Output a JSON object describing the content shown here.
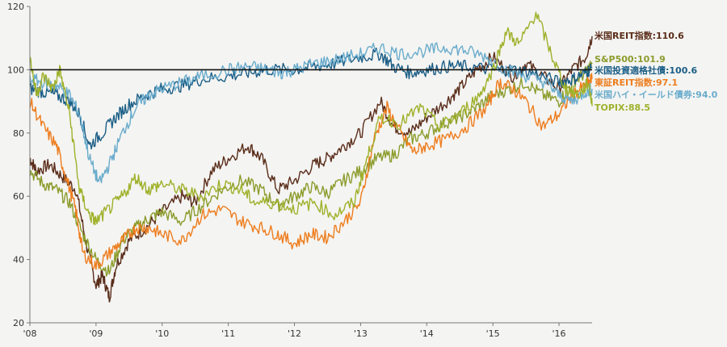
{
  "chart_data": {
    "type": "line",
    "title": "",
    "xlabel": "",
    "ylabel": "",
    "ylim": [
      20,
      120
    ],
    "xlim": [
      2008.0,
      2016.5
    ],
    "y_ticks": [
      "20",
      "40",
      "60",
      "80",
      "100",
      "120"
    ],
    "x_ticks": [
      {
        "year": 2008,
        "label": "'08"
      },
      {
        "year": 2009,
        "label": "'09"
      },
      {
        "year": 2010,
        "label": "'10"
      },
      {
        "year": 2011,
        "label": "'11"
      },
      {
        "year": 2012,
        "label": "'12"
      },
      {
        "year": 2013,
        "label": "'13"
      },
      {
        "year": 2014,
        "label": "'14"
      },
      {
        "year": 2015,
        "label": "'15"
      },
      {
        "year": 2016,
        "label": "'16"
      }
    ],
    "reference_line": 100,
    "grid": false,
    "legend": "right",
    "series": [
      {
        "name": "米国REIT指数:110.6",
        "color": "#5a2d1a",
        "x": [
          2008.0,
          2008.1,
          2008.3,
          2008.5,
          2008.7,
          2008.85,
          2009.0,
          2009.1,
          2009.2,
          2009.3,
          2009.5,
          2009.75,
          2010.0,
          2010.3,
          2010.5,
          2010.75,
          2011.0,
          2011.3,
          2011.5,
          2011.75,
          2012.0,
          2012.3,
          2012.5,
          2012.75,
          2013.0,
          2013.3,
          2013.5,
          2013.75,
          2014.0,
          2014.3,
          2014.5,
          2014.75,
          2015.0,
          2015.3,
          2015.5,
          2015.75,
          2016.0,
          2016.2,
          2016.4,
          2016.5
        ],
        "y": [
          72,
          68,
          70,
          66,
          62,
          45,
          32,
          35,
          28,
          38,
          46,
          50,
          55,
          60,
          58,
          68,
          72,
          76,
          72,
          62,
          65,
          70,
          72,
          76,
          80,
          90,
          82,
          80,
          85,
          90,
          94,
          100,
          104,
          98,
          102,
          98,
          94,
          100,
          104,
          110.6
        ]
      },
      {
        "name": "S&P500:101.9",
        "color": "#8c9c2c",
        "x": [
          2008.0,
          2008.2,
          2008.4,
          2008.6,
          2008.8,
          2009.0,
          2009.2,
          2009.4,
          2009.6,
          2009.8,
          2010.0,
          2010.3,
          2010.6,
          2010.9,
          2011.2,
          2011.5,
          2011.75,
          2012.0,
          2012.25,
          2012.5,
          2012.75,
          2013.0,
          2013.25,
          2013.5,
          2013.75,
          2014.0,
          2014.25,
          2014.5,
          2014.75,
          2015.0,
          2015.25,
          2015.5,
          2015.75,
          2016.0,
          2016.2,
          2016.4,
          2016.5
        ],
        "y": [
          68,
          64,
          62,
          58,
          48,
          40,
          36,
          46,
          50,
          53,
          55,
          52,
          57,
          62,
          65,
          62,
          57,
          60,
          63,
          61,
          65,
          68,
          72,
          73,
          78,
          80,
          83,
          85,
          88,
          92,
          94,
          96,
          92,
          90,
          96,
          99,
          101.9
        ]
      },
      {
        "name": "米国投資適格社債:100.6",
        "color": "#1b5e86",
        "x": [
          2008.0,
          2008.2,
          2008.4,
          2008.6,
          2008.75,
          2008.9,
          2009.1,
          2009.3,
          2009.5,
          2009.75,
          2010.0,
          2010.3,
          2010.6,
          2011.0,
          2011.3,
          2011.6,
          2012.0,
          2012.3,
          2012.6,
          2013.0,
          2013.3,
          2013.5,
          2013.75,
          2014.0,
          2014.3,
          2014.6,
          2015.0,
          2015.3,
          2015.6,
          2016.0,
          2016.2,
          2016.4,
          2016.5
        ],
        "y": [
          94,
          93,
          92,
          90,
          86,
          76,
          80,
          85,
          89,
          92,
          94,
          95,
          97,
          98,
          99,
          100,
          100,
          101,
          102,
          104,
          105,
          101,
          99,
          100,
          101,
          101,
          100,
          100,
          99,
          96,
          97,
          99,
          100.6
        ]
      },
      {
        "name": "東証REIT指数:97.1",
        "color": "#ee7d1e",
        "x": [
          2008.0,
          2008.2,
          2008.4,
          2008.55,
          2008.7,
          2008.8,
          2009.0,
          2009.2,
          2009.4,
          2009.6,
          2009.8,
          2010.0,
          2010.3,
          2010.6,
          2010.9,
          2011.2,
          2011.5,
          2011.75,
          2012.0,
          2012.25,
          2012.5,
          2012.75,
          2013.0,
          2013.2,
          2013.4,
          2013.6,
          2013.8,
          2014.0,
          2014.3,
          2014.6,
          2014.9,
          2015.1,
          2015.3,
          2015.5,
          2015.75,
          2016.0,
          2016.2,
          2016.4,
          2016.5
        ],
        "y": [
          90,
          82,
          76,
          66,
          55,
          42,
          38,
          42,
          46,
          50,
          50,
          48,
          46,
          54,
          56,
          52,
          50,
          48,
          45,
          48,
          47,
          52,
          58,
          78,
          88,
          80,
          74,
          76,
          78,
          82,
          88,
          96,
          94,
          90,
          82,
          86,
          92,
          95,
          97.1
        ]
      },
      {
        "name": "米国ハイ・イールド債券:94.0",
        "color": "#6aaccc",
        "x": [
          2008.0,
          2008.2,
          2008.4,
          2008.6,
          2008.75,
          2008.9,
          2009.05,
          2009.2,
          2009.4,
          2009.6,
          2009.8,
          2010.0,
          2010.3,
          2010.6,
          2011.0,
          2011.3,
          2011.6,
          2011.8,
          2012.0,
          2012.3,
          2012.6,
          2013.0,
          2013.3,
          2013.6,
          2014.0,
          2014.3,
          2014.6,
          2014.9,
          2015.2,
          2015.5,
          2015.8,
          2016.0,
          2016.2,
          2016.4,
          2016.5
        ],
        "y": [
          97,
          96,
          95,
          92,
          86,
          72,
          64,
          70,
          80,
          88,
          92,
          94,
          96,
          98,
          100,
          101,
          100,
          99,
          100,
          102,
          103,
          105,
          107,
          105,
          106,
          107,
          106,
          104,
          100,
          98,
          96,
          92,
          90,
          93,
          94.0
        ]
      },
      {
        "name": "TOPIX:88.5",
        "color": "#9fb12a",
        "x": [
          2008.0,
          2008.1,
          2008.2,
          2008.35,
          2008.45,
          2008.6,
          2008.75,
          2008.9,
          2009.0,
          2009.2,
          2009.4,
          2009.6,
          2009.8,
          2010.0,
          2010.3,
          2010.6,
          2010.9,
          2011.2,
          2011.4,
          2011.7,
          2012.0,
          2012.3,
          2012.6,
          2012.9,
          2013.1,
          2013.3,
          2013.6,
          2013.9,
          2014.2,
          2014.5,
          2014.8,
          2015.0,
          2015.2,
          2015.4,
          2015.65,
          2015.9,
          2016.1,
          2016.3,
          2016.45,
          2016.5
        ],
        "y": [
          104,
          92,
          98,
          94,
          100,
          86,
          62,
          54,
          52,
          56,
          60,
          66,
          62,
          64,
          62,
          60,
          64,
          62,
          58,
          58,
          56,
          58,
          54,
          58,
          72,
          85,
          83,
          88,
          82,
          86,
          92,
          100,
          112,
          108,
          118,
          104,
          94,
          92,
          96,
          88.5
        ]
      }
    ]
  }
}
